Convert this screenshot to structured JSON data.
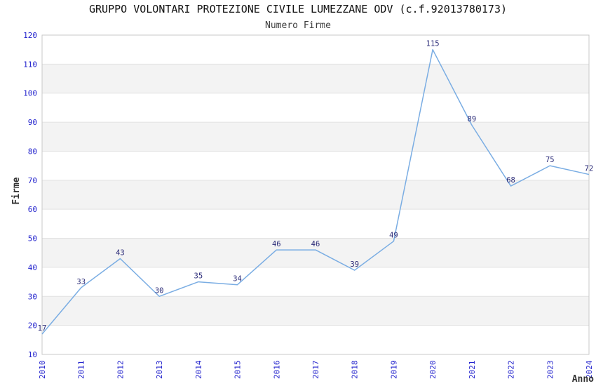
{
  "chart_data": {
    "type": "line",
    "title": "GRUPPO VOLONTARI PROTEZIONE CIVILE LUMEZZANE ODV (c.f.92013780173)",
    "subtitle": "Numero Firme",
    "xlabel": "Anno",
    "ylabel": "Firme",
    "categories": [
      "2010",
      "2011",
      "2012",
      "2013",
      "2014",
      "2015",
      "2016",
      "2017",
      "2018",
      "2019",
      "2020",
      "2021",
      "2022",
      "2023",
      "2024"
    ],
    "series": [
      {
        "name": "Numero Firme",
        "values": [
          17,
          33,
          43,
          30,
          35,
          34,
          46,
          46,
          39,
          49,
          115,
          89,
          68,
          75,
          72
        ]
      }
    ],
    "ylim": [
      10,
      120
    ],
    "ytick_step": 10,
    "yticks": [
      10,
      20,
      30,
      40,
      50,
      60,
      70,
      80,
      90,
      100,
      110,
      120
    ],
    "grid": true,
    "alternating_bands": true,
    "legend": "none",
    "data_labels_visible": true,
    "colors": {
      "line": "#7aade3",
      "tick_label": "#2323cd",
      "data_label": "#2b2b78",
      "title": "#111111",
      "subtitle": "#3c3c3c",
      "axis_title": "#333333",
      "band": "#f3f3f3",
      "gridline": "#e2e2e2",
      "frame": "#c9c9c9",
      "background": "#ffffff"
    }
  }
}
